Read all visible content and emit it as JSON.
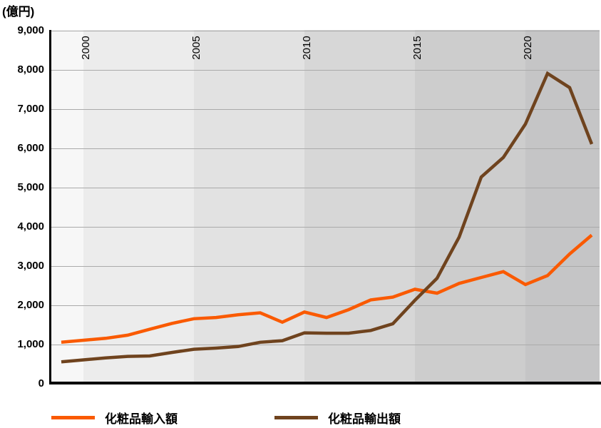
{
  "title": "(億円)",
  "legend": [
    {
      "label": "化粧品輸入額",
      "color": "#FA5A00"
    },
    {
      "label": "化粧品輸出額",
      "color": "#6F431E"
    }
  ],
  "chart_data": {
    "type": "line",
    "title": "",
    "ylabel": "(億円)",
    "xlabel": "",
    "ylim": [
      0,
      9000
    ],
    "ytick_interval": 1000,
    "ytick_labels": [
      "0",
      "1,000",
      "2,000",
      "3,000",
      "4,000",
      "5,000",
      "6,000",
      "7,000",
      "8,000",
      "9,000"
    ],
    "grid": true,
    "legend_position": "bottom",
    "x": [
      1999,
      2000,
      2001,
      2002,
      2003,
      2004,
      2005,
      2006,
      2007,
      2008,
      2009,
      2010,
      2011,
      2012,
      2013,
      2014,
      2015,
      2016,
      2017,
      2018,
      2019,
      2020,
      2021,
      2022,
      2023
    ],
    "xtick_years": [
      2000,
      2005,
      2010,
      2015,
      2020
    ],
    "xtick_labels": [
      "2000",
      "2005",
      "2010",
      "2015",
      "2020"
    ],
    "background_band_years": [
      1999,
      2000,
      2005,
      2010,
      2015,
      2020
    ],
    "background_band_colors": [
      "#F7F7F7",
      "#ECECEC",
      "#E2E2E2",
      "#D7D7D7",
      "#CDCDCD",
      "#C5C5C6"
    ],
    "series": [
      {
        "name": "化粧品輸入額",
        "color": "#FA5A00",
        "values": [
          1050,
          1100,
          1150,
          1230,
          1380,
          1530,
          1650,
          1680,
          1750,
          1800,
          1560,
          1820,
          1680,
          1880,
          2130,
          2200,
          2400,
          2300,
          2550,
          2700,
          2850,
          2520,
          2750,
          3300,
          3780
        ]
      },
      {
        "name": "化粧品輸出額",
        "color": "#6F431E",
        "values": [
          550,
          600,
          650,
          690,
          700,
          790,
          870,
          900,
          940,
          1050,
          1090,
          1290,
          1280,
          1280,
          1350,
          1520,
          2120,
          2680,
          3730,
          5260,
          5760,
          6610,
          7900,
          7540,
          6100
        ]
      }
    ]
  }
}
